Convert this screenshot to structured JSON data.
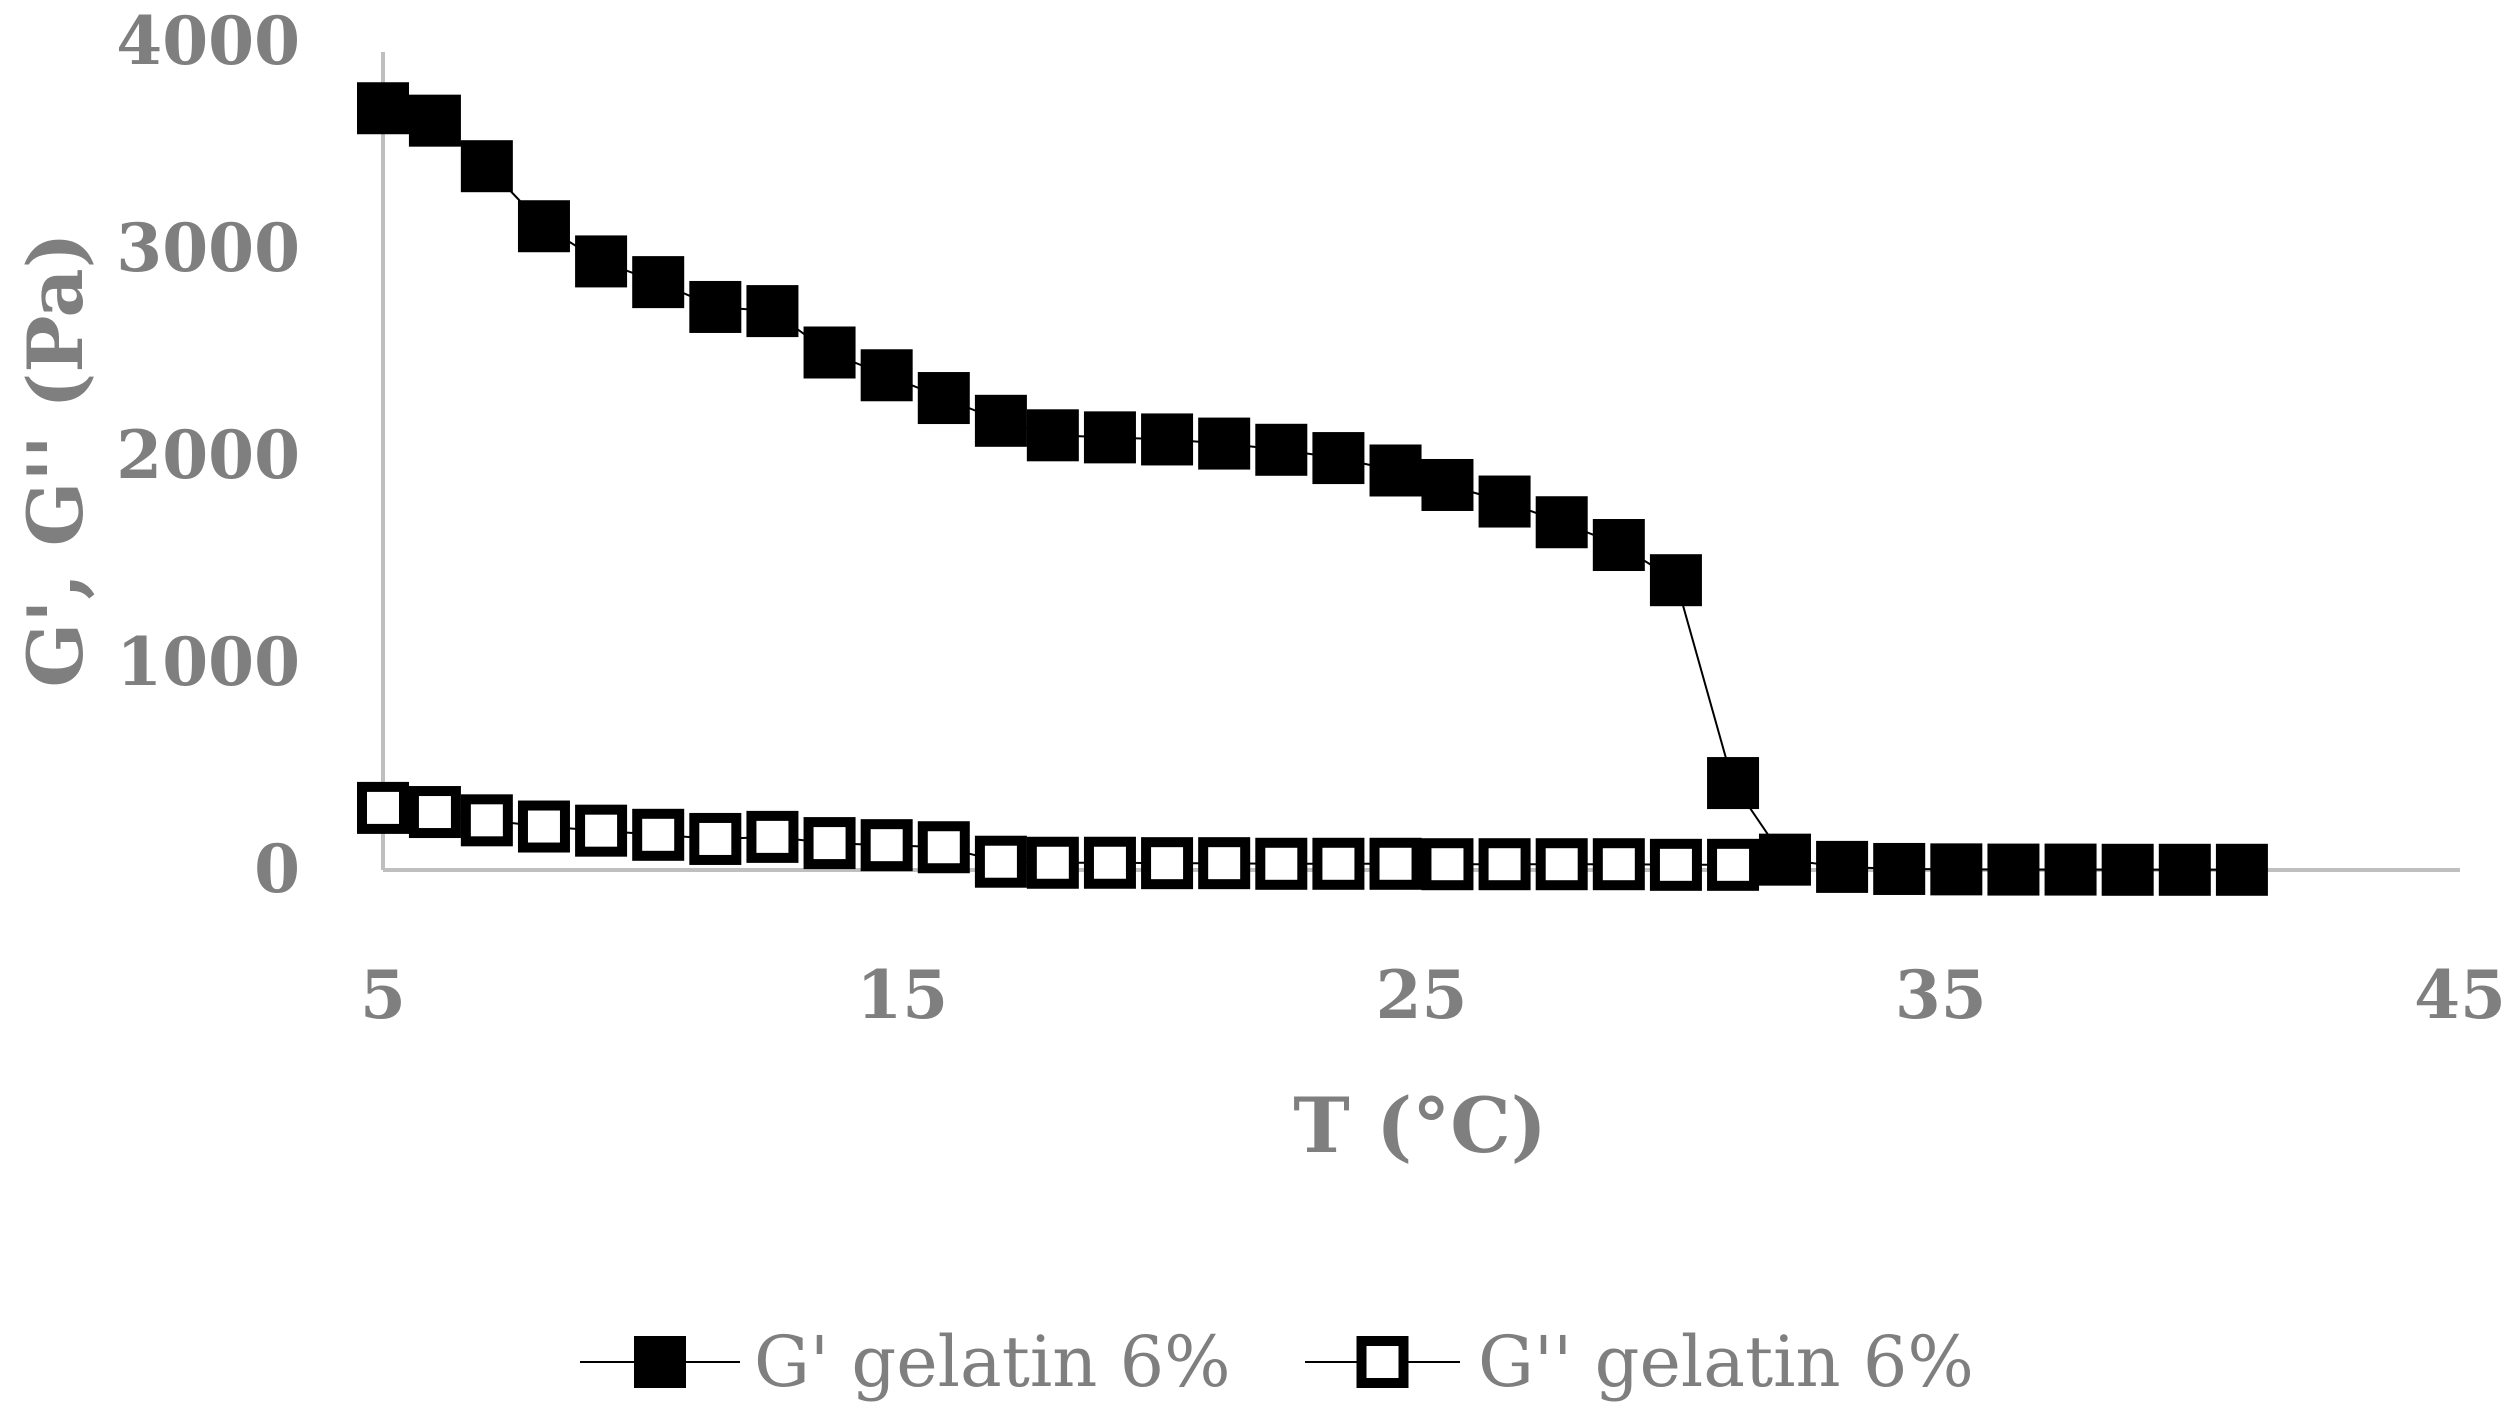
{
  "chart_data": {
    "type": "line",
    "xlabel": "T (°C)",
    "ylabel": "G', G'' (Pa)",
    "xlim": [
      5,
      45
    ],
    "ylim": [
      0,
      4000
    ],
    "x_ticks": [
      "5",
      "15",
      "25",
      "35",
      "45"
    ],
    "y_ticks": [
      "0",
      "1000",
      "2000",
      "3000",
      "4000"
    ],
    "grid": false,
    "legend_position": "bottom",
    "series": [
      {
        "name": "G' gelatin 6%",
        "marker": "filled-square",
        "color": "#000000",
        "points": [
          [
            5.0,
            3680
          ],
          [
            6.0,
            3620
          ],
          [
            7.0,
            3400
          ],
          [
            8.1,
            3110
          ],
          [
            9.2,
            2940
          ],
          [
            10.3,
            2840
          ],
          [
            11.4,
            2720
          ],
          [
            12.5,
            2700
          ],
          [
            13.6,
            2500
          ],
          [
            14.7,
            2390
          ],
          [
            15.8,
            2280
          ],
          [
            16.9,
            2170
          ],
          [
            17.9,
            2100
          ],
          [
            19.0,
            2090
          ],
          [
            20.1,
            2080
          ],
          [
            21.2,
            2060
          ],
          [
            22.3,
            2030
          ],
          [
            23.4,
            1990
          ],
          [
            24.5,
            1930
          ],
          [
            25.5,
            1860
          ],
          [
            26.6,
            1780
          ],
          [
            27.7,
            1680
          ],
          [
            28.8,
            1570
          ],
          [
            29.9,
            1400
          ],
          [
            31.0,
            420
          ],
          [
            32.0,
            50
          ],
          [
            33.1,
            15
          ],
          [
            34.2,
            5
          ],
          [
            35.3,
            3
          ],
          [
            36.4,
            2
          ],
          [
            37.5,
            2
          ],
          [
            38.6,
            1
          ],
          [
            39.7,
            1
          ],
          [
            40.8,
            1
          ]
        ]
      },
      {
        "name": "G'' gelatin 6%",
        "marker": "open-square",
        "color": "#000000",
        "points": [
          [
            5.0,
            300
          ],
          [
            6.0,
            280
          ],
          [
            7.0,
            240
          ],
          [
            8.1,
            210
          ],
          [
            9.2,
            190
          ],
          [
            10.3,
            170
          ],
          [
            11.4,
            150
          ],
          [
            12.5,
            160
          ],
          [
            13.6,
            130
          ],
          [
            14.7,
            120
          ],
          [
            15.8,
            110
          ],
          [
            16.9,
            40
          ],
          [
            17.9,
            35
          ],
          [
            19.0,
            35
          ],
          [
            20.1,
            33
          ],
          [
            21.2,
            33
          ],
          [
            22.3,
            30
          ],
          [
            23.4,
            30
          ],
          [
            24.5,
            30
          ],
          [
            25.5,
            28
          ],
          [
            26.6,
            28
          ],
          [
            27.7,
            28
          ],
          [
            28.8,
            28
          ],
          [
            29.9,
            25
          ],
          [
            31.0,
            25
          ]
        ]
      }
    ]
  }
}
